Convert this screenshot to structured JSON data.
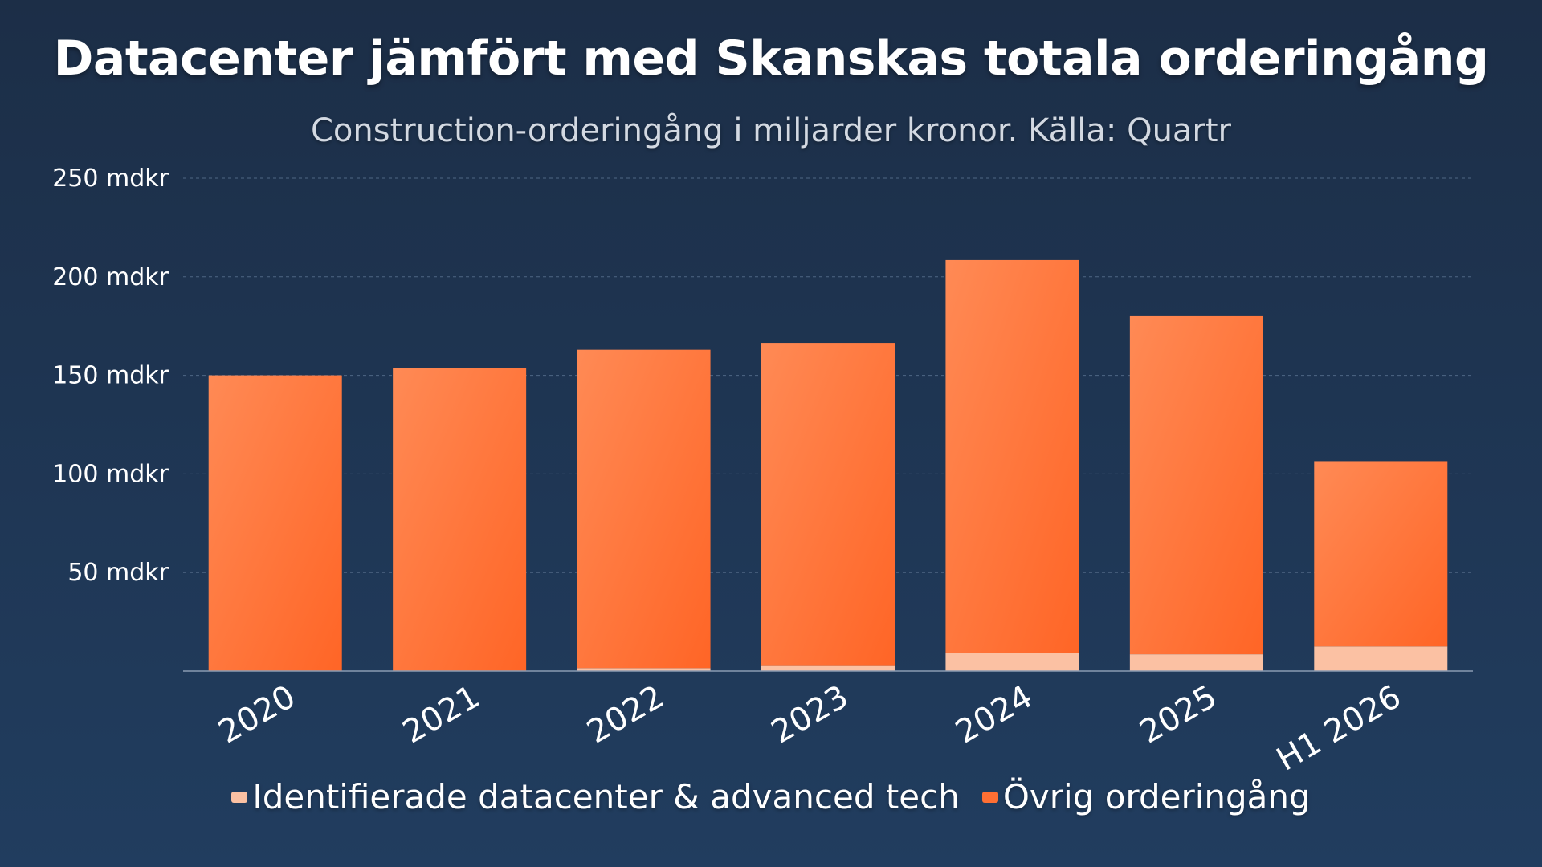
{
  "title": "Datacenter jämfört med Skanskas totala orderingång",
  "subtitle": "Construction-orderingång i miljarder kronor. Källa: Quartr",
  "colors": {
    "background_top": "#1c2e47",
    "background_bottom": "#213d5f",
    "ovrig": "#ff6f33",
    "datacenter": "#fbc1a3"
  },
  "chart_data": {
    "type": "bar",
    "stacked": true,
    "categories": [
      "2020",
      "2021",
      "2022",
      "2023",
      "2024",
      "2025",
      "H1 2026"
    ],
    "series": [
      {
        "name": "Identifierade datacenter & advanced tech",
        "values": [
          0,
          0,
          1.5,
          3,
          9,
          8.5,
          12.5
        ]
      },
      {
        "name": "Övrig orderingång",
        "values": [
          150,
          153.5,
          161.5,
          163.5,
          199.5,
          171.5,
          94
        ]
      }
    ],
    "ylim": [
      0,
      250
    ],
    "yticks": [
      50,
      100,
      150,
      200,
      250
    ],
    "ytick_labels": [
      "50 mdkr",
      "100 mdkr",
      "150 mdkr",
      "200 mdkr",
      "250 mdkr"
    ],
    "xlabel": "",
    "ylabel": "",
    "grid": true,
    "legend_position": "bottom"
  }
}
